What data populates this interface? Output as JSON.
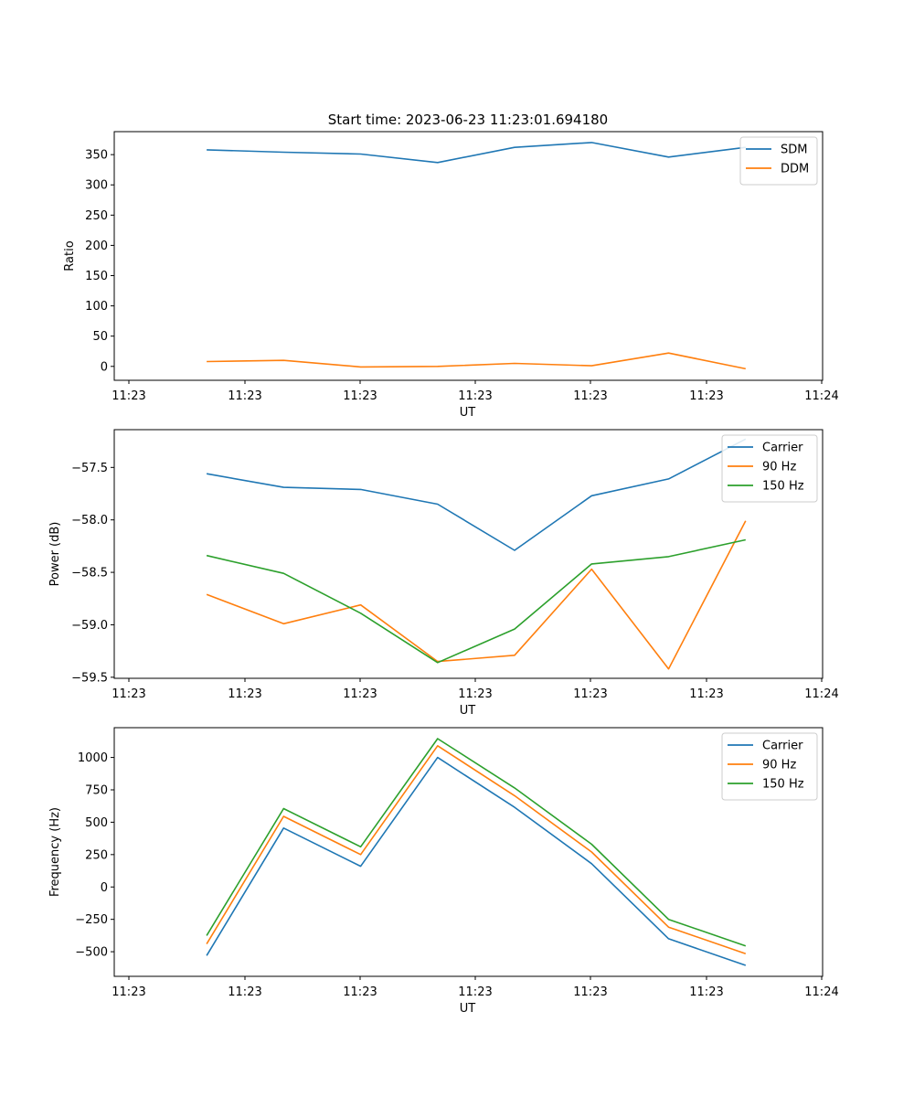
{
  "figure_title": "Start time: 2023-06-23 11:23:01.694180",
  "chart_data": [
    {
      "type": "line",
      "xlabel": "UT",
      "ylabel": "Ratio",
      "x_tick_labels": [
        "11:23",
        "11:23",
        "11:23",
        "11:23",
        "11:23",
        "11:23",
        "11:24"
      ],
      "y_ticks": [
        0,
        50,
        100,
        150,
        200,
        250,
        300,
        350
      ],
      "ylim": [
        -23,
        388
      ],
      "legend_position": "top-right",
      "grid": false,
      "x": [
        1,
        2,
        3,
        4,
        5,
        6,
        7,
        8
      ],
      "xlim": [
        -0.2,
        9.0
      ],
      "series": [
        {
          "name": "SDM",
          "color": "#1f77b4",
          "values": [
            358,
            354,
            351,
            337,
            362,
            370,
            346,
            362
          ]
        },
        {
          "name": "DDM",
          "color": "#ff7f0e",
          "values": [
            8,
            10,
            -1,
            0,
            5,
            1,
            22,
            -4
          ]
        }
      ]
    },
    {
      "type": "line",
      "xlabel": "UT",
      "ylabel": "Power (dB)",
      "x_tick_labels": [
        "11:23",
        "11:23",
        "11:23",
        "11:23",
        "11:23",
        "11:23",
        "11:24"
      ],
      "y_ticks": [
        -59.5,
        -59.0,
        -58.5,
        -58.0,
        -57.5
      ],
      "y_tick_labels": [
        "−59.5",
        "−59.0",
        "−58.5",
        "−58.0",
        "−57.5"
      ],
      "ylim": [
        -59.51,
        -57.14
      ],
      "legend_position": "top-right",
      "grid": false,
      "x": [
        1,
        2,
        3,
        4,
        5,
        6,
        7,
        8
      ],
      "xlim": [
        -0.2,
        9.0
      ],
      "series": [
        {
          "name": "Carrier",
          "color": "#1f77b4",
          "values": [
            -57.56,
            -57.69,
            -57.71,
            -57.85,
            -58.29,
            -57.77,
            -57.61,
            -57.23
          ]
        },
        {
          "name": "90 Hz",
          "color": "#ff7f0e",
          "values": [
            -58.71,
            -58.99,
            -58.81,
            -59.35,
            -59.29,
            -58.47,
            -59.42,
            -58.01
          ]
        },
        {
          "name": "150 Hz",
          "color": "#2ca02c",
          "values": [
            -58.34,
            -58.51,
            -58.89,
            -59.36,
            -59.04,
            -58.42,
            -58.35,
            -58.19
          ]
        }
      ]
    },
    {
      "type": "line",
      "xlabel": "UT",
      "ylabel": "Frequency (Hz)",
      "x_tick_labels": [
        "11:23",
        "11:23",
        "11:23",
        "11:23",
        "11:23",
        "11:23",
        "11:24"
      ],
      "y_ticks": [
        -500,
        -250,
        0,
        250,
        500,
        750,
        1000
      ],
      "y_tick_labels": [
        "−500",
        "−250",
        "0",
        "250",
        "500",
        "750",
        "1000"
      ],
      "ylim": [
        -690,
        1230
      ],
      "legend_position": "top-right",
      "grid": false,
      "x": [
        1,
        2,
        3,
        4,
        5,
        6,
        7,
        8
      ],
      "xlim": [
        -0.2,
        9.0
      ],
      "series": [
        {
          "name": "Carrier",
          "color": "#1f77b4",
          "values": [
            -530,
            455,
            160,
            1000,
            615,
            180,
            -400,
            -605
          ]
        },
        {
          "name": "90 Hz",
          "color": "#ff7f0e",
          "values": [
            -440,
            545,
            250,
            1090,
            705,
            270,
            -310,
            -515
          ]
        },
        {
          "name": "150 Hz",
          "color": "#2ca02c",
          "values": [
            -375,
            605,
            310,
            1145,
            765,
            330,
            -250,
            -455
          ]
        }
      ]
    }
  ]
}
